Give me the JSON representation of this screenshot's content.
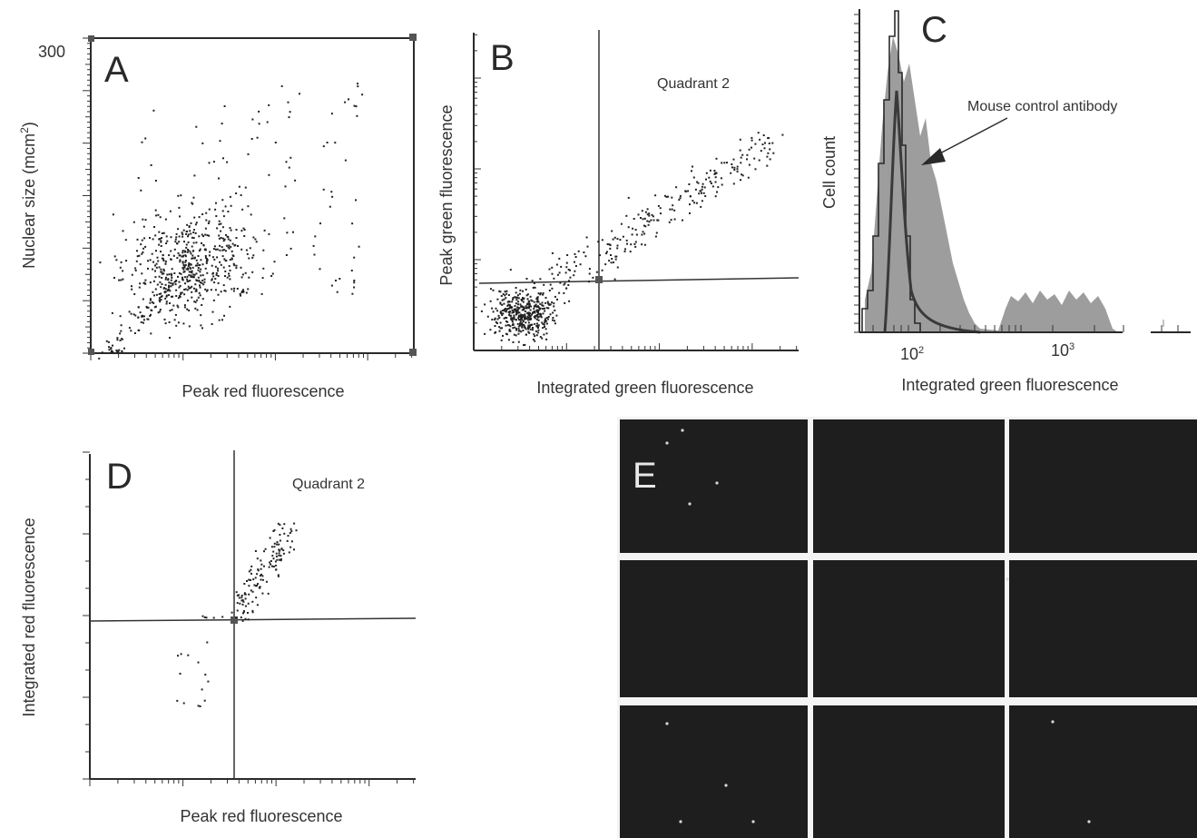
{
  "panels": [
    {
      "id": "A",
      "label": "A",
      "xlabel": "Peak red fluorescence",
      "ylabel_main": "Nuclear size (mcm",
      "ylabel_sup": "2",
      "ylabel_end": ")",
      "y_max_tick": "300"
    },
    {
      "id": "B",
      "label": "B",
      "xlabel": "Integrated green fluorescence",
      "ylabel": "Peak green fluorescence",
      "annotation": "Quadrant 2"
    },
    {
      "id": "C",
      "label": "C",
      "xlabel": "Integrated green fluorescence",
      "ylabel": "Cell count",
      "annotation": "Mouse control antibody",
      "x_tick_1": "10",
      "x_tick_1_sup": "2",
      "x_tick_2": "10",
      "x_tick_2_sup": "3"
    },
    {
      "id": "D",
      "label": "D",
      "xlabel": "Peak red fluorescence",
      "ylabel": "Integrated red fluorescence",
      "annotation": "Quadrant 2"
    },
    {
      "id": "E",
      "label": "E",
      "grid_rows": 3,
      "grid_cols": 3
    }
  ],
  "chart_data": [
    {
      "type": "scatter",
      "panel": "A",
      "xlabel": "Peak red fluorescence",
      "ylabel": "Nuclear size (mcm2)",
      "ylim": [
        0,
        300
      ],
      "x_scale": "log",
      "point_count": 700,
      "cluster_center_x_fraction": 0.31,
      "cluster_center_y_value": 75
    },
    {
      "type": "scatter",
      "panel": "B",
      "xlabel": "Integrated green fluorescence",
      "ylabel": "Peak green fluorescence",
      "x_scale": "log",
      "y_scale": "log",
      "gate_x_fraction": 0.38,
      "gate_y_fraction": 0.28,
      "annotation": "Quadrant 2",
      "point_count": 650
    },
    {
      "type": "area",
      "panel": "C",
      "xlabel": "Integrated green fluorescence",
      "ylabel": "Cell count",
      "x_scale": "log",
      "xticks": [
        "10^2",
        "10^3"
      ],
      "series": [
        {
          "name": "Mouse control antibody",
          "style": "line"
        },
        {
          "style": "filled",
          "color": "#8c8c8c"
        }
      ]
    },
    {
      "type": "scatter",
      "panel": "D",
      "xlabel": "Peak red fluorescence",
      "ylabel": "Integrated red fluorescence",
      "x_scale": "log",
      "gate_x_fraction": 0.44,
      "gate_y_fraction": 0.49,
      "annotation": "Quadrant 2",
      "point_count": 150
    }
  ]
}
